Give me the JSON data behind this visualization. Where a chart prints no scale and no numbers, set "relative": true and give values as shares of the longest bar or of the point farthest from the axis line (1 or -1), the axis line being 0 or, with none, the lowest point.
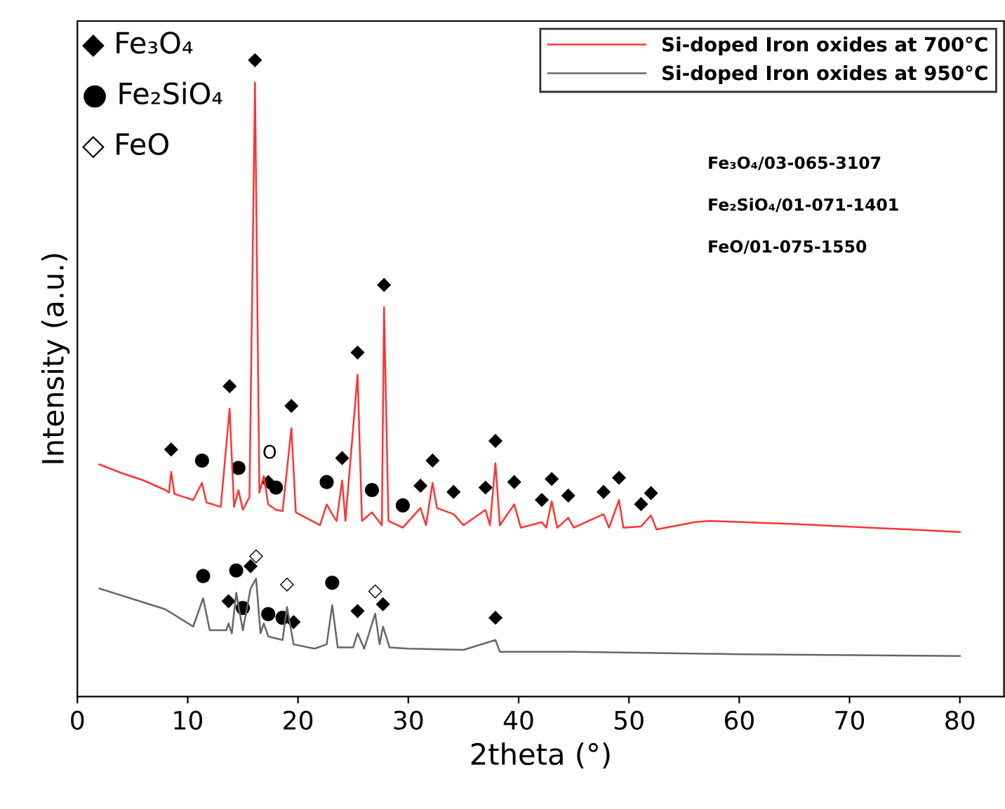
{
  "chart_data": {
    "type": "line",
    "relative": true,
    "xlabel": "2theta (°)",
    "ylabel": "Intensity (a.u.)",
    "xlim": [
      0,
      84
    ],
    "xticks": [
      0,
      10,
      20,
      30,
      40,
      50,
      60,
      70,
      80
    ],
    "legend": "top right",
    "grid": false,
    "marker": "none",
    "line_style": "solid",
    "series": [
      {
        "name": "Si-doped Iron oxides at 700°C",
        "color": "#ff3333",
        "x": [
          2,
          4,
          6,
          8,
          8.3,
          8.5,
          8.8,
          10.5,
          11.3,
          11.7,
          13,
          13.8,
          14.2,
          14.6,
          15.0,
          15.6,
          16.1,
          16.5,
          16.9,
          17.3,
          18.0,
          18.6,
          19.4,
          19.8,
          22,
          22.6,
          23.1,
          23.5,
          24.0,
          24.3,
          25.4,
          25.8,
          26.7,
          27.6,
          27.8,
          28.2,
          29.5,
          31.1,
          31.6,
          32.2,
          32.6,
          34.1,
          35,
          37.0,
          37.4,
          37.9,
          38.3,
          39.6,
          40.2,
          42.1,
          42.5,
          43.0,
          43.5,
          44.5,
          45,
          47.7,
          48.2,
          49.1,
          49.5,
          51.1,
          52.0,
          52.5,
          56,
          57.3,
          65,
          80
        ],
        "values": [
          0.378,
          0.364,
          0.352,
          0.336,
          0.332,
          0.366,
          0.33,
          0.32,
          0.348,
          0.316,
          0.309,
          0.469,
          0.309,
          0.336,
          0.304,
          0.325,
          1.0,
          0.332,
          0.359,
          0.313,
          0.304,
          0.302,
          0.437,
          0.3,
          0.279,
          0.313,
          0.297,
          0.286,
          0.352,
          0.286,
          0.524,
          0.286,
          0.3,
          0.279,
          0.634,
          0.286,
          0.275,
          0.307,
          0.279,
          0.348,
          0.307,
          0.297,
          0.279,
          0.304,
          0.279,
          0.38,
          0.279,
          0.313,
          0.275,
          0.284,
          0.275,
          0.318,
          0.275,
          0.291,
          0.275,
          0.297,
          0.275,
          0.32,
          0.275,
          0.277,
          0.295,
          0.272,
          0.284,
          0.286,
          0.281,
          0.268
        ]
      },
      {
        "name": "Si-doped Iron oxides at 950°C",
        "color": "#666666",
        "x": [
          2,
          8,
          10.5,
          11.4,
          12,
          13.5,
          13.7,
          14.0,
          14.4,
          15.0,
          15.7,
          16.2,
          16.6,
          16.9,
          17.3,
          18.6,
          19.0,
          19.6,
          21.5,
          22.6,
          23.1,
          23.6,
          25.0,
          25.4,
          26.0,
          27.0,
          27.4,
          27.7,
          28.3,
          30,
          35,
          37.9,
          38.3,
          45,
          60,
          80
        ],
        "values": [
          0.176,
          0.142,
          0.114,
          0.16,
          0.108,
          0.108,
          0.119,
          0.103,
          0.169,
          0.108,
          0.176,
          0.192,
          0.103,
          0.119,
          0.098,
          0.092,
          0.146,
          0.085,
          0.078,
          0.085,
          0.149,
          0.08,
          0.08,
          0.103,
          0.078,
          0.135,
          0.085,
          0.114,
          0.08,
          0.078,
          0.076,
          0.092,
          0.073,
          0.073,
          0.069,
          0.066
        ]
      }
    ],
    "annotations": [
      "◆ Fe₃O₄",
      "● Fe₂SiO₄",
      "◇ FeO",
      "Fe₃O₄/03-065-3107",
      "Fe₂SiO₄/01-071-1401",
      "FeO/01-075-1550",
      {
        "text": "◆",
        "x": 8.5,
        "y": 0.366
      },
      {
        "text": "●",
        "x": 11.3,
        "y": 0.348
      },
      {
        "text": "◆",
        "x": 13.8,
        "y": 0.469
      },
      {
        "text": "●",
        "x": 14.6,
        "y": 0.336
      },
      {
        "text": "◆",
        "x": 16.1,
        "y": 1.0
      },
      {
        "text": "O",
        "x": 16.9,
        "y": 0.359
      },
      {
        "text": "◆",
        "x": 17.3,
        "y": 0.313
      },
      {
        "text": "●",
        "x": 18.0,
        "y": 0.304
      },
      {
        "text": "◆",
        "x": 19.4,
        "y": 0.437
      },
      {
        "text": "●",
        "x": 22.6,
        "y": 0.313
      },
      {
        "text": "◆",
        "x": 24.0,
        "y": 0.352
      },
      {
        "text": "◆",
        "x": 25.4,
        "y": 0.524
      },
      {
        "text": "●",
        "x": 26.7,
        "y": 0.3
      },
      {
        "text": "◆",
        "x": 27.8,
        "y": 0.634
      },
      {
        "text": "●",
        "x": 29.5,
        "y": 0.275
      },
      {
        "text": "◆",
        "x": 31.1,
        "y": 0.307
      },
      {
        "text": "◆",
        "x": 32.2,
        "y": 0.348
      },
      {
        "text": "◆",
        "x": 34.1,
        "y": 0.297
      },
      {
        "text": "◆",
        "x": 37.0,
        "y": 0.304
      },
      {
        "text": "◆",
        "x": 37.9,
        "y": 0.38
      },
      {
        "text": "◆",
        "x": 39.6,
        "y": 0.313
      },
      {
        "text": "◆",
        "x": 42.1,
        "y": 0.284
      },
      {
        "text": "◆",
        "x": 43.0,
        "y": 0.318
      },
      {
        "text": "◆",
        "x": 44.5,
        "y": 0.291
      },
      {
        "text": "◆",
        "x": 47.7,
        "y": 0.297
      },
      {
        "text": "◆",
        "x": 49.1,
        "y": 0.32
      },
      {
        "text": "◆",
        "x": 51.1,
        "y": 0.277
      },
      {
        "text": "◆",
        "x": 52.0,
        "y": 0.295
      },
      {
        "text": "●",
        "x": 11.4,
        "y": 0.16
      },
      {
        "text": "●",
        "x": 14.4,
        "y": 0.169
      },
      {
        "text": "◆",
        "x": 13.7,
        "y": 0.119
      },
      {
        "text": "◆",
        "x": 15.7,
        "y": 0.176
      },
      {
        "text": "●",
        "x": 15.0,
        "y": 0.108
      },
      {
        "text": "◇",
        "x": 16.2,
        "y": 0.192
      },
      {
        "text": "●",
        "x": 17.3,
        "y": 0.098
      },
      {
        "text": "◇",
        "x": 19.0,
        "y": 0.146
      },
      {
        "text": "●",
        "x": 18.6,
        "y": 0.092
      },
      {
        "text": "◆",
        "x": 19.6,
        "y": 0.085
      },
      {
        "text": "●",
        "x": 23.1,
        "y": 0.149
      },
      {
        "text": "◆",
        "x": 25.4,
        "y": 0.103
      },
      {
        "text": "◇",
        "x": 27.0,
        "y": 0.135
      },
      {
        "text": "◆",
        "x": 27.7,
        "y": 0.114
      },
      {
        "text": "◆",
        "x": 37.9,
        "y": 0.092
      }
    ]
  }
}
